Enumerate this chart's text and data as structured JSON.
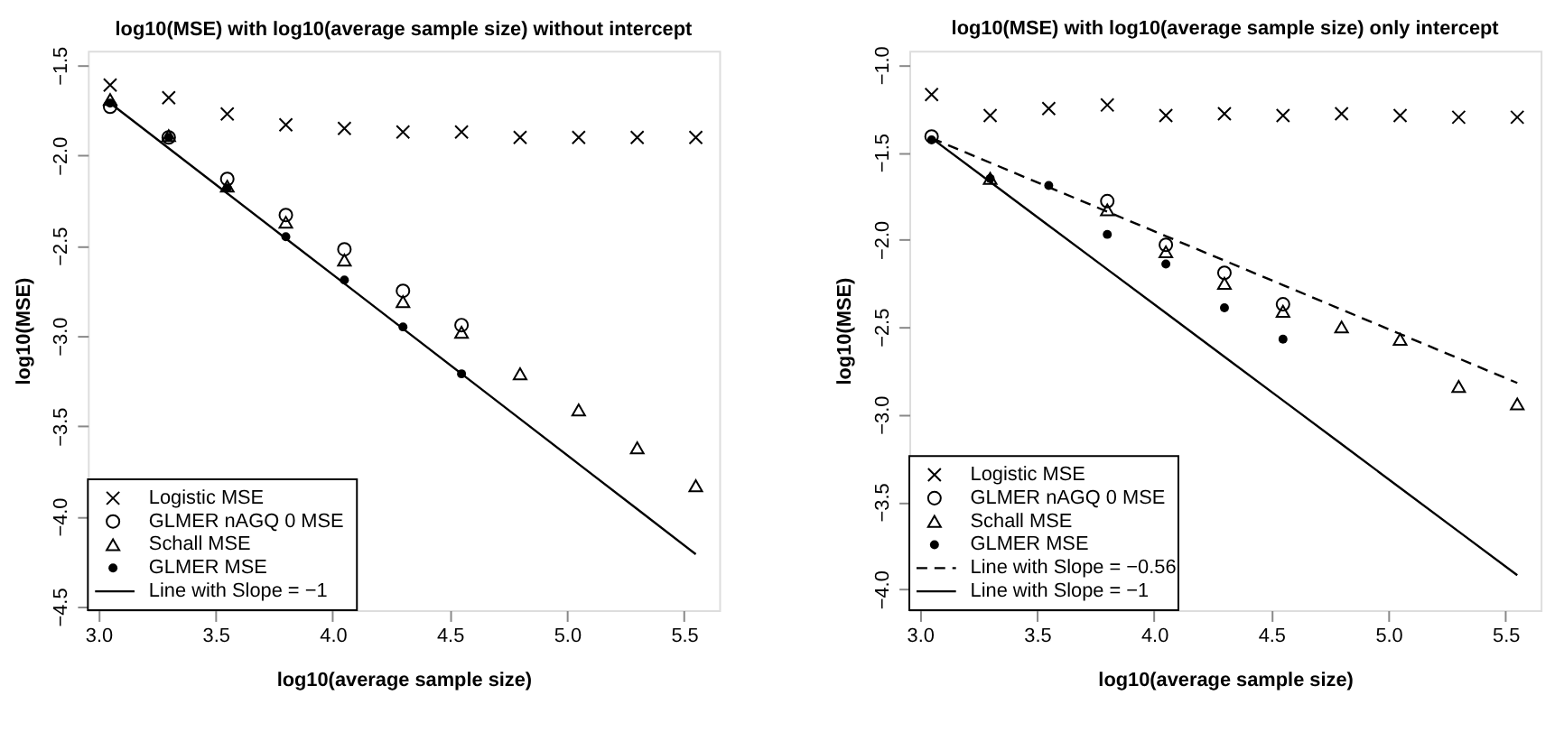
{
  "chart_data": [
    {
      "type": "scatter",
      "title": "log10(MSE) with log10(average sample size) without intercept",
      "xlabel": "log10(average sample size)",
      "ylabel": "log10(MSE)",
      "xlim": [
        2.955,
        5.65
      ],
      "ylim": [
        -4.52,
        -1.42
      ],
      "xticks": [
        {
          "value": 3,
          "label": "3.0"
        },
        3.5,
        {
          "value": 4,
          "label": "4.0"
        },
        4.5,
        {
          "value": 5,
          "label": "5.0"
        },
        5.5
      ],
      "yticks": [
        {
          "value": -1.5,
          "label": "−1.5"
        },
        {
          "value": -2,
          "label": "−2.0"
        },
        {
          "value": -2.5,
          "label": "−2.5"
        },
        {
          "value": -3,
          "label": "−3.0"
        },
        {
          "value": -3.5,
          "label": "−3.5"
        },
        {
          "value": -4,
          "label": "−4.0"
        },
        {
          "value": -4.5,
          "label": "−4.5"
        }
      ],
      "grid": false,
      "legend": "bottom left",
      "x": [
        3.05,
        3.3,
        3.55,
        3.8,
        4.05,
        4.3,
        4.55,
        4.8,
        5.05,
        5.3,
        5.55
      ],
      "series": [
        {
          "name": "Logistic MSE",
          "color": "#000000",
          "marker": "cross",
          "values": [
            -1.61,
            -1.68,
            -1.77,
            -1.83,
            -1.85,
            -1.87,
            -1.87,
            -1.9,
            -1.9,
            -1.9,
            -1.9
          ]
        },
        {
          "name": "GLMER nAGQ 0 MSE",
          "color": "#000000",
          "marker": "circle",
          "values": [
            -1.73,
            -1.9,
            -2.13,
            -2.33,
            -2.52,
            -2.75,
            -2.94,
            null,
            null,
            null,
            null
          ]
        },
        {
          "name": "Schall MSE",
          "color": "#000000",
          "marker": "triangle",
          "values": [
            -1.69,
            -1.89,
            -2.17,
            -2.37,
            -2.58,
            -2.81,
            -2.98,
            -3.21,
            -3.41,
            -3.62,
            -3.83
          ]
        },
        {
          "name": "GLMER MSE",
          "color": "#000000",
          "marker": "dot",
          "values": [
            -1.71,
            -1.9,
            -2.18,
            -2.45,
            -2.69,
            -2.95,
            -3.21,
            null,
            null,
            null,
            null
          ]
        },
        {
          "name": "Line with Slope = −1",
          "color": "#000000",
          "type": "line",
          "line_style": "solid",
          "values": [
            -1.71,
            -1.96,
            -2.21,
            -2.46,
            -2.71,
            -2.96,
            -3.21,
            -3.46,
            -3.71,
            -3.96,
            -4.21
          ]
        }
      ]
    },
    {
      "type": "scatter",
      "title": "log10(MSE) with log10(average sample size) only intercept",
      "xlabel": "log10(average sample size)",
      "ylabel": "log10(MSE)",
      "xlim": [
        2.955,
        5.65
      ],
      "ylim": [
        -4.12,
        -0.92
      ],
      "xticks": [
        {
          "value": 3,
          "label": "3.0"
        },
        3.5,
        {
          "value": 4,
          "label": "4.0"
        },
        4.5,
        {
          "value": 5,
          "label": "5.0"
        },
        5.5
      ],
      "yticks": [
        {
          "value": -1,
          "label": "−1.0"
        },
        {
          "value": -1.5,
          "label": "−1.5"
        },
        {
          "value": -2,
          "label": "−2.0"
        },
        {
          "value": -2.5,
          "label": "−2.5"
        },
        {
          "value": -3,
          "label": "−3.0"
        },
        {
          "value": -3.5,
          "label": "−3.5"
        },
        {
          "value": -4,
          "label": "−4.0"
        }
      ],
      "grid": false,
      "legend": "bottom left",
      "x": [
        3.05,
        3.3,
        3.55,
        3.8,
        4.05,
        4.3,
        4.55,
        4.8,
        5.05,
        5.3,
        5.55
      ],
      "series": [
        {
          "name": "Logistic MSE",
          "color": "#000000",
          "marker": "cross",
          "values": [
            -1.17,
            -1.29,
            -1.25,
            -1.23,
            -1.29,
            -1.28,
            -1.29,
            -1.28,
            -1.29,
            -1.3,
            -1.3
          ]
        },
        {
          "name": "GLMER nAGQ 0 MSE",
          "color": "#000000",
          "marker": "circle",
          "values": [
            -1.41,
            null,
            null,
            -1.78,
            -2.03,
            -2.19,
            -2.37,
            null,
            null,
            null,
            null
          ]
        },
        {
          "name": "Schall MSE",
          "color": "#000000",
          "marker": "triangle",
          "values": [
            null,
            -1.65,
            null,
            -1.83,
            -2.07,
            -2.25,
            -2.41,
            -2.5,
            -2.57,
            -2.84,
            -2.94
          ]
        },
        {
          "name": "GLMER MSE",
          "color": "#000000",
          "marker": "dot",
          "values": [
            -1.43,
            -1.65,
            -1.69,
            -1.97,
            -2.14,
            -2.39,
            -2.57,
            null,
            null,
            null,
            null
          ]
        },
        {
          "name": "Line with Slope = −0.56",
          "color": "#000000",
          "type": "line",
          "line_style": "dashed",
          "values": [
            -1.42,
            -1.56,
            -1.7,
            -1.84,
            -1.98,
            -2.12,
            -2.26,
            -2.4,
            -2.54,
            -2.68,
            -2.82
          ]
        },
        {
          "name": "Line with Slope = −1",
          "color": "#000000",
          "type": "line",
          "line_style": "solid",
          "values": [
            -1.42,
            -1.67,
            -1.92,
            -2.17,
            -2.42,
            -2.67,
            -2.92,
            -3.17,
            -3.42,
            -3.67,
            -3.92
          ]
        }
      ]
    }
  ]
}
